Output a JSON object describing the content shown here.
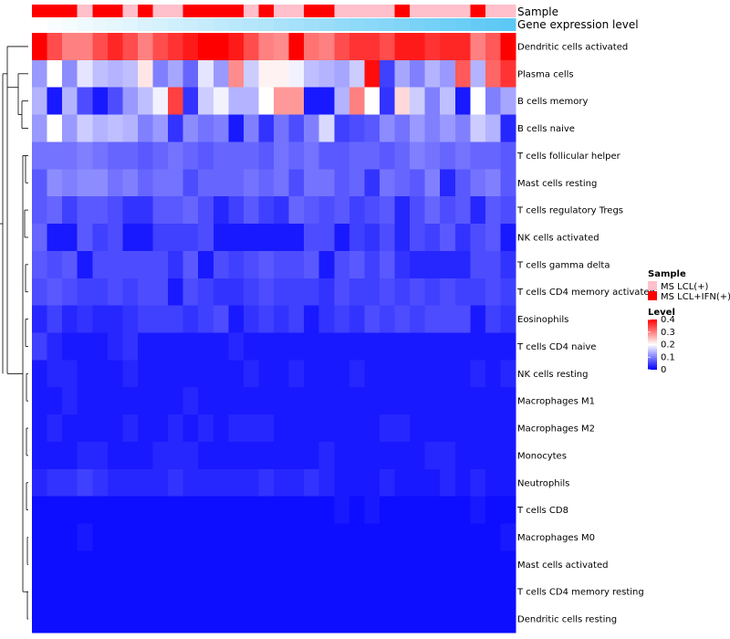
{
  "chart_data": {
    "type": "heatmap",
    "annotations": {
      "sample_label": "Sample",
      "gene_label": "Gene expression level",
      "sample_groups": [
        "MS LCL+IFN(+)",
        "MS LCL+IFN(+)",
        "MS LCL+IFN(+)",
        "MS LCL(+)",
        "MS LCL+IFN(+)",
        "MS LCL+IFN(+)",
        "MS LCL(+)",
        "MS LCL+IFN(+)",
        "MS LCL(+)",
        "MS LCL(+)",
        "MS LCL+IFN(+)",
        "MS LCL+IFN(+)",
        "MS LCL+IFN(+)",
        "MS LCL+IFN(+)",
        "MS LCL(+)",
        "MS LCL+IFN(+)",
        "MS LCL(+)",
        "MS LCL(+)",
        "MS LCL+IFN(+)",
        "MS LCL+IFN(+)",
        "MS LCL(+)",
        "MS LCL(+)",
        "MS LCL(+)",
        "MS LCL(+)",
        "MS LCL+IFN(+)",
        "MS LCL(+)",
        "MS LCL(+)",
        "MS LCL(+)",
        "MS LCL(+)",
        "MS LCL+IFN(+)",
        "MS LCL(+)",
        "MS LCL(+)"
      ],
      "gene_level": [
        0.0,
        0.03,
        0.06,
        0.1,
        0.13,
        0.16,
        0.19,
        0.23,
        0.26,
        0.29,
        0.32,
        0.35,
        0.39,
        0.42,
        0.45,
        0.48,
        0.52,
        0.55,
        0.58,
        0.61,
        0.65,
        0.68,
        0.71,
        0.74,
        0.77,
        0.81,
        0.84,
        0.87,
        0.9,
        0.94,
        0.97,
        1.0
      ]
    },
    "rows": [
      "Dendritic cells activated",
      "Plasma cells",
      "B cells memory",
      "B cells naive",
      "T cells follicular helper",
      "Mast cells resting",
      "T cells regulatory  Tregs",
      "NK cells activated",
      "T cells gamma delta",
      "T cells CD4 memory activated",
      "Eosinophils",
      "T cells CD4 naive",
      "NK cells resting",
      "Macrophages M1",
      "Macrophages M2",
      "Monocytes",
      "Neutrophils",
      "T cells CD8",
      "Macrophages M0",
      "Mast cells activated",
      "T cells CD4 memory resting",
      "Dendritic cells resting"
    ],
    "values": [
      [
        0.4,
        0.34,
        0.3,
        0.3,
        0.34,
        0.37,
        0.34,
        0.3,
        0.34,
        0.36,
        0.38,
        0.4,
        0.4,
        0.38,
        0.34,
        0.3,
        0.29,
        0.4,
        0.31,
        0.3,
        0.34,
        0.36,
        0.36,
        0.34,
        0.38,
        0.38,
        0.36,
        0.37,
        0.37,
        0.3,
        0.33,
        0.4
      ],
      [
        0.12,
        0.2,
        0.11,
        0.18,
        0.15,
        0.14,
        0.15,
        0.22,
        0.1,
        0.13,
        0.08,
        0.18,
        0.12,
        0.29,
        0.16,
        0.21,
        0.21,
        0.19,
        0.15,
        0.14,
        0.13,
        0.16,
        0.39,
        0.05,
        0.13,
        0.1,
        0.14,
        0.12,
        0.33,
        0.14,
        0.32,
        0.36
      ],
      [
        0.14,
        0.02,
        0.14,
        0.06,
        0.02,
        0.06,
        0.12,
        0.15,
        0.19,
        0.35,
        0.04,
        0.16,
        0.19,
        0.14,
        0.14,
        0.2,
        0.28,
        0.28,
        0.02,
        0.02,
        0.14,
        0.3,
        0.2,
        0.04,
        0.23,
        0.16,
        0.1,
        0.15,
        0.02,
        0.2,
        0.1,
        0.13
      ],
      [
        0.12,
        0.2,
        0.12,
        0.16,
        0.14,
        0.15,
        0.14,
        0.1,
        0.12,
        0.04,
        0.11,
        0.09,
        0.1,
        0.02,
        0.1,
        0.04,
        0.09,
        0.06,
        0.1,
        0.17,
        0.05,
        0.06,
        0.07,
        0.11,
        0.09,
        0.12,
        0.1,
        0.12,
        0.1,
        0.16,
        0.14,
        0.03
      ],
      [
        0.09,
        0.09,
        0.09,
        0.1,
        0.09,
        0.08,
        0.08,
        0.07,
        0.08,
        0.09,
        0.08,
        0.07,
        0.08,
        0.08,
        0.08,
        0.07,
        0.09,
        0.08,
        0.09,
        0.07,
        0.07,
        0.08,
        0.08,
        0.07,
        0.08,
        0.1,
        0.09,
        0.08,
        0.09,
        0.08,
        0.08,
        0.07
      ],
      [
        0.07,
        0.11,
        0.1,
        0.11,
        0.11,
        0.09,
        0.1,
        0.08,
        0.09,
        0.09,
        0.06,
        0.08,
        0.08,
        0.08,
        0.09,
        0.08,
        0.09,
        0.06,
        0.09,
        0.09,
        0.07,
        0.08,
        0.04,
        0.09,
        0.08,
        0.07,
        0.1,
        0.03,
        0.07,
        0.09,
        0.1,
        0.07
      ],
      [
        0.07,
        0.08,
        0.05,
        0.07,
        0.07,
        0.06,
        0.04,
        0.04,
        0.07,
        0.07,
        0.08,
        0.06,
        0.03,
        0.05,
        0.07,
        0.05,
        0.04,
        0.08,
        0.07,
        0.06,
        0.07,
        0.05,
        0.06,
        0.07,
        0.03,
        0.06,
        0.08,
        0.06,
        0.07,
        0.03,
        0.07,
        0.06
      ],
      [
        0.08,
        0.02,
        0.02,
        0.07,
        0.05,
        0.06,
        0.02,
        0.02,
        0.05,
        0.05,
        0.05,
        0.06,
        0.02,
        0.02,
        0.02,
        0.02,
        0.02,
        0.02,
        0.06,
        0.06,
        0.02,
        0.05,
        0.04,
        0.06,
        0.03,
        0.06,
        0.05,
        0.07,
        0.04,
        0.06,
        0.07,
        0.02
      ],
      [
        0.07,
        0.06,
        0.07,
        0.02,
        0.06,
        0.06,
        0.06,
        0.06,
        0.06,
        0.04,
        0.07,
        0.02,
        0.06,
        0.05,
        0.06,
        0.07,
        0.06,
        0.06,
        0.07,
        0.02,
        0.06,
        0.07,
        0.05,
        0.07,
        0.04,
        0.03,
        0.03,
        0.03,
        0.03,
        0.06,
        0.06,
        0.04
      ],
      [
        0.06,
        0.07,
        0.06,
        0.05,
        0.05,
        0.06,
        0.05,
        0.06,
        0.06,
        0.02,
        0.06,
        0.05,
        0.04,
        0.04,
        0.05,
        0.06,
        0.05,
        0.05,
        0.05,
        0.04,
        0.06,
        0.05,
        0.05,
        0.06,
        0.05,
        0.06,
        0.05,
        0.06,
        0.05,
        0.05,
        0.06,
        0.05
      ],
      [
        0.03,
        0.05,
        0.03,
        0.04,
        0.03,
        0.03,
        0.04,
        0.05,
        0.05,
        0.05,
        0.04,
        0.05,
        0.06,
        0.02,
        0.04,
        0.05,
        0.04,
        0.05,
        0.02,
        0.04,
        0.05,
        0.04,
        0.06,
        0.05,
        0.06,
        0.05,
        0.06,
        0.06,
        0.06,
        0.02,
        0.05,
        0.04
      ],
      [
        0.05,
        0.03,
        0.02,
        0.02,
        0.02,
        0.03,
        0.04,
        0.02,
        0.02,
        0.02,
        0.02,
        0.02,
        0.02,
        0.03,
        0.02,
        0.02,
        0.02,
        0.02,
        0.02,
        0.02,
        0.02,
        0.02,
        0.02,
        0.02,
        0.02,
        0.02,
        0.02,
        0.02,
        0.02,
        0.02,
        0.02,
        0.02
      ],
      [
        0.02,
        0.03,
        0.03,
        0.02,
        0.02,
        0.02,
        0.03,
        0.02,
        0.02,
        0.02,
        0.02,
        0.02,
        0.02,
        0.02,
        0.03,
        0.02,
        0.02,
        0.03,
        0.02,
        0.02,
        0.02,
        0.03,
        0.02,
        0.02,
        0.02,
        0.02,
        0.02,
        0.02,
        0.02,
        0.03,
        0.02,
        0.03
      ],
      [
        0.02,
        0.02,
        0.03,
        0.02,
        0.02,
        0.02,
        0.02,
        0.02,
        0.02,
        0.02,
        0.03,
        0.02,
        0.02,
        0.02,
        0.02,
        0.02,
        0.02,
        0.02,
        0.02,
        0.02,
        0.02,
        0.02,
        0.02,
        0.02,
        0.02,
        0.02,
        0.02,
        0.02,
        0.02,
        0.02,
        0.02,
        0.02
      ],
      [
        0.02,
        0.03,
        0.02,
        0.02,
        0.02,
        0.02,
        0.03,
        0.02,
        0.02,
        0.03,
        0.02,
        0.03,
        0.02,
        0.03,
        0.03,
        0.03,
        0.02,
        0.02,
        0.02,
        0.02,
        0.02,
        0.02,
        0.02,
        0.03,
        0.03,
        0.02,
        0.02,
        0.02,
        0.02,
        0.02,
        0.02,
        0.02
      ],
      [
        0.02,
        0.02,
        0.02,
        0.03,
        0.03,
        0.02,
        0.02,
        0.02,
        0.03,
        0.03,
        0.03,
        0.02,
        0.02,
        0.02,
        0.02,
        0.02,
        0.02,
        0.02,
        0.02,
        0.03,
        0.02,
        0.02,
        0.02,
        0.02,
        0.02,
        0.02,
        0.03,
        0.03,
        0.02,
        0.02,
        0.02,
        0.02
      ],
      [
        0.03,
        0.04,
        0.04,
        0.05,
        0.04,
        0.03,
        0.03,
        0.03,
        0.03,
        0.04,
        0.03,
        0.03,
        0.03,
        0.03,
        0.03,
        0.04,
        0.03,
        0.03,
        0.04,
        0.03,
        0.02,
        0.02,
        0.02,
        0.03,
        0.02,
        0.02,
        0.02,
        0.03,
        0.02,
        0.03,
        0.02,
        0.02
      ],
      [
        0.01,
        0.01,
        0.01,
        0.01,
        0.01,
        0.01,
        0.01,
        0.01,
        0.01,
        0.01,
        0.01,
        0.01,
        0.01,
        0.01,
        0.01,
        0.01,
        0.01,
        0.01,
        0.01,
        0.01,
        0.02,
        0.01,
        0.02,
        0.01,
        0.01,
        0.01,
        0.01,
        0.01,
        0.01,
        0.02,
        0.01,
        0.01
      ],
      [
        0.01,
        0.01,
        0.01,
        0.02,
        0.01,
        0.01,
        0.01,
        0.01,
        0.01,
        0.01,
        0.01,
        0.01,
        0.01,
        0.01,
        0.01,
        0.01,
        0.01,
        0.01,
        0.01,
        0.01,
        0.01,
        0.01,
        0.01,
        0.01,
        0.01,
        0.01,
        0.01,
        0.01,
        0.01,
        0.01,
        0.01,
        0.02
      ],
      [
        0.01,
        0.01,
        0.01,
        0.01,
        0.01,
        0.01,
        0.01,
        0.01,
        0.01,
        0.01,
        0.01,
        0.01,
        0.01,
        0.01,
        0.01,
        0.01,
        0.01,
        0.01,
        0.01,
        0.01,
        0.01,
        0.01,
        0.01,
        0.01,
        0.01,
        0.01,
        0.01,
        0.01,
        0.01,
        0.01,
        0.01,
        0.01
      ],
      [
        0.01,
        0.01,
        0.01,
        0.01,
        0.01,
        0.01,
        0.01,
        0.01,
        0.01,
        0.01,
        0.01,
        0.01,
        0.01,
        0.01,
        0.01,
        0.01,
        0.01,
        0.01,
        0.01,
        0.01,
        0.01,
        0.01,
        0.01,
        0.01,
        0.01,
        0.01,
        0.01,
        0.01,
        0.01,
        0.01,
        0.01,
        0.01
      ],
      [
        0.01,
        0.01,
        0.01,
        0.01,
        0.01,
        0.01,
        0.01,
        0.01,
        0.01,
        0.01,
        0.01,
        0.01,
        0.01,
        0.01,
        0.01,
        0.01,
        0.01,
        0.01,
        0.01,
        0.01,
        0.01,
        0.01,
        0.01,
        0.01,
        0.01,
        0.01,
        0.01,
        0.01,
        0.01,
        0.01,
        0.01,
        0.01
      ]
    ],
    "color_scale": {
      "min": 0,
      "mid": 0.2,
      "max": 0.4,
      "low": "#0000ff",
      "midColor": "#ffffff",
      "high": "#ff0000"
    },
    "legend": {
      "sample_title": "Sample",
      "sample_entries": [
        {
          "label": "MS LCL(+)",
          "color": "#ffc0cb"
        },
        {
          "label": "MS LCL+IFN(+)",
          "color": "#ff0000"
        }
      ],
      "level_title": "Level",
      "level_ticks": [
        "0.4",
        "0.3",
        "0.2",
        "0.1",
        "0"
      ],
      "level_tick_values": [
        0.4,
        0.3,
        0.2,
        0.1,
        0
      ]
    },
    "gene_colors": {
      "low": "#ffffff",
      "high": "#5bc8f5"
    }
  }
}
